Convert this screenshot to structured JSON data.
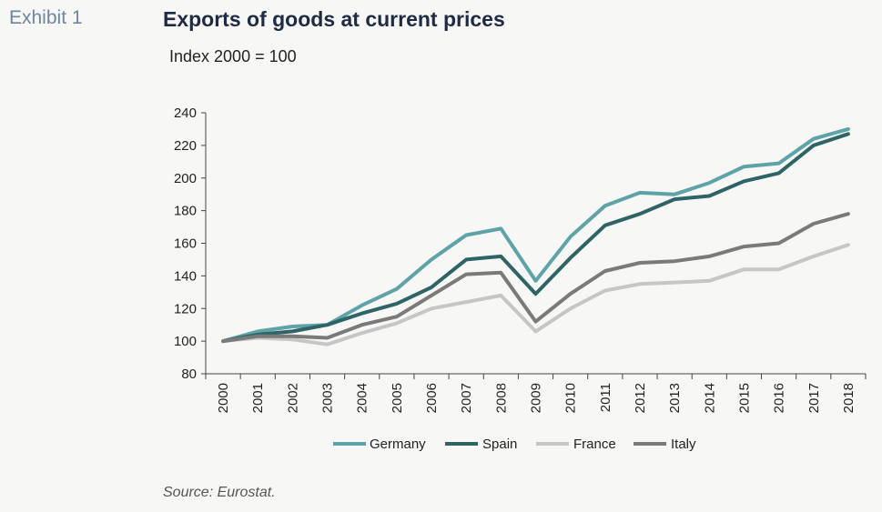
{
  "header": {
    "exhibit": "Exhibit 1",
    "title": "Exports of goods at current prices",
    "subtitle": "Index 2000 = 100"
  },
  "footer": {
    "source": "Source: Eurostat."
  },
  "chart_data": {
    "type": "line",
    "title": "Exports of goods at current prices",
    "subtitle": "Index 2000 = 100",
    "xlabel": "",
    "ylabel": "",
    "x": [
      "2000",
      "2001",
      "2002",
      "2003",
      "2004",
      "2005",
      "2006",
      "2007",
      "2008",
      "2009",
      "2010",
      "2011",
      "2012",
      "2013",
      "2014",
      "2015",
      "2016",
      "2017",
      "2018"
    ],
    "ylim": [
      80,
      240
    ],
    "yticks": [
      80,
      100,
      120,
      140,
      160,
      180,
      200,
      220,
      240
    ],
    "grid": false,
    "legend_position": "bottom",
    "series": [
      {
        "name": "Germany",
        "color": "#5ea3a8",
        "values": [
          100,
          106,
          109,
          110,
          122,
          132,
          150,
          165,
          169,
          137,
          164,
          183,
          191,
          190,
          197,
          207,
          209,
          224,
          230
        ]
      },
      {
        "name": "Spain",
        "color": "#2f6466",
        "values": [
          100,
          104,
          106,
          110,
          117,
          123,
          133,
          150,
          152,
          129,
          151,
          171,
          178,
          187,
          189,
          198,
          203,
          220,
          227
        ]
      },
      {
        "name": "France",
        "color": "#c5c7c6",
        "values": [
          100,
          102,
          101,
          98,
          105,
          111,
          120,
          124,
          128,
          106,
          120,
          131,
          135,
          136,
          137,
          144,
          144,
          152,
          159
        ]
      },
      {
        "name": "Italy",
        "color": "#7a7a7a",
        "values": [
          100,
          103,
          103,
          102,
          110,
          115,
          128,
          141,
          142,
          112,
          129,
          143,
          148,
          149,
          152,
          158,
          160,
          172,
          178
        ]
      }
    ]
  }
}
